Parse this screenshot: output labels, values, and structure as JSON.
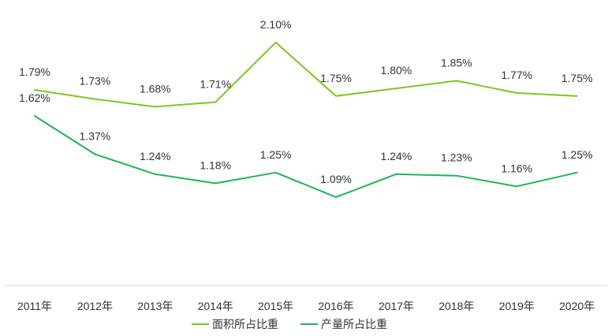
{
  "chart_data": {
    "type": "line",
    "categories": [
      "2011年",
      "2012年",
      "2013年",
      "2014年",
      "2015年",
      "2016年",
      "2017年",
      "2018年",
      "2019年",
      "2020年"
    ],
    "series": [
      {
        "name": "面积所占比重",
        "color": "#7dc720",
        "values": [
          1.79,
          1.73,
          1.68,
          1.71,
          2.1,
          1.75,
          1.8,
          1.85,
          1.77,
          1.75
        ],
        "labels": [
          "1.79%",
          "1.73%",
          "1.68%",
          "1.71%",
          "2.10%",
          "1.75%",
          "1.80%",
          "1.85%",
          "1.77%",
          "1.75%"
        ]
      },
      {
        "name": "产量所占比重",
        "color": "#1fb455",
        "values": [
          1.62,
          1.37,
          1.24,
          1.18,
          1.25,
          1.09,
          1.24,
          1.23,
          1.16,
          1.25
        ],
        "labels": [
          "1.62%",
          "1.37%",
          "1.24%",
          "1.18%",
          "1.25%",
          "1.09%",
          "1.24%",
          "1.23%",
          "1.16%",
          "1.25%"
        ]
      }
    ],
    "ylim": [
      0.6,
      2.3
    ],
    "grid": false,
    "legend": "bottom-center",
    "title": "",
    "xlabel": "",
    "ylabel": ""
  }
}
